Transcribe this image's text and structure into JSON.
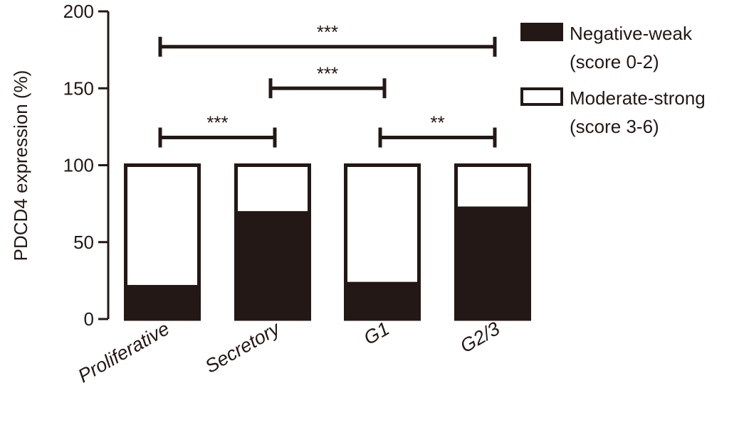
{
  "chart_data": {
    "type": "bar",
    "stacked": true,
    "ylabel": "PDCD4 expression (%)",
    "ylim": [
      0,
      200
    ],
    "yticks": [
      0,
      50,
      100,
      150,
      200
    ],
    "categories": [
      "Proliferative",
      "Secretory",
      "G1",
      "G2/3"
    ],
    "series": [
      {
        "name": "Negative-weak\n(score 0-2)",
        "legend_lines": [
          "Negative-weak",
          "(score 0-2)"
        ],
        "color": "#231815",
        "values": [
          21,
          69,
          23,
          72
        ]
      },
      {
        "name": "Moderate-strong\n(score 3-6)",
        "legend_lines": [
          "Moderate-strong",
          "(score 3-6)"
        ],
        "color": "#ffffff",
        "values": [
          79,
          31,
          77,
          28
        ]
      }
    ],
    "significance": [
      {
        "from": "Proliferative",
        "to": "Secretory",
        "label": "***",
        "y": 118
      },
      {
        "from": "Secretory",
        "to": "G1",
        "label": "***",
        "y": 150
      },
      {
        "from": "G1",
        "to": "G2/3",
        "label": "**",
        "y": 118
      },
      {
        "from": "Proliferative",
        "to": "G2/3",
        "label": "***",
        "y": 177
      }
    ],
    "legend_position": "top-right",
    "grid": false
  }
}
